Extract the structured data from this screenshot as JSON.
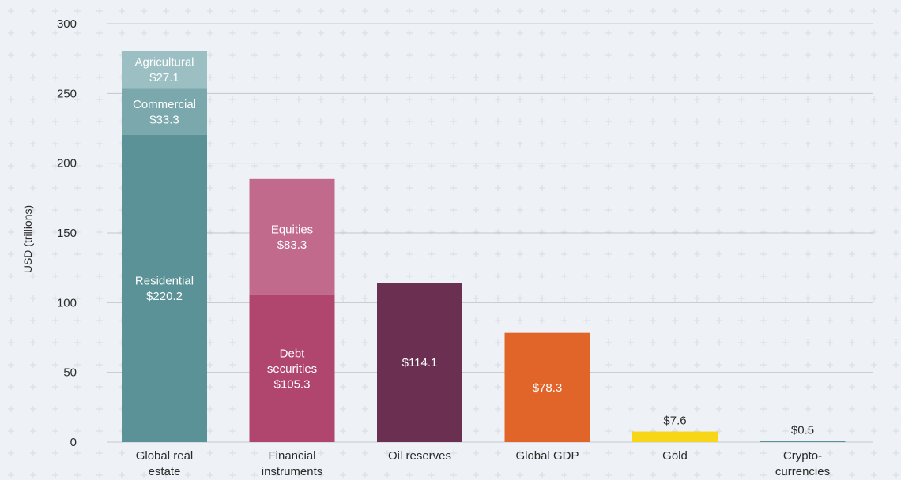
{
  "chart_data": {
    "type": "bar",
    "stacked": true,
    "ylabel": "USD (trillions)",
    "ylim": [
      0,
      300
    ],
    "yticks": [
      0,
      50,
      100,
      150,
      200,
      250,
      300
    ],
    "grid": true,
    "categories": [
      {
        "label_lines": [
          "Global real",
          "estate"
        ],
        "segments": [
          {
            "name": "Residential",
            "value": 220.2,
            "label_lines": [
              "Residential",
              "$220.2"
            ],
            "color": "#5a9297",
            "text_color": "#ffffff"
          },
          {
            "name": "Commercial",
            "value": 33.3,
            "label_lines": [
              "Commercial",
              "$33.3"
            ],
            "color": "#7ba8ad",
            "text_color": "#ffffff"
          },
          {
            "name": "Agricultural",
            "value": 27.1,
            "label_lines": [
              "Agricultural",
              "$27.1"
            ],
            "color": "#9cbfc3",
            "text_color": "#ffffff"
          }
        ]
      },
      {
        "label_lines": [
          "Financial",
          "instruments"
        ],
        "segments": [
          {
            "name": "Debt securities",
            "value": 105.3,
            "label_lines": [
              "Debt",
              "securities",
              "$105.3"
            ],
            "color": "#b0466d",
            "text_color": "#ffffff"
          },
          {
            "name": "Equities",
            "value": 83.3,
            "label_lines": [
              "Equities",
              "$83.3"
            ],
            "color": "#c26a8c",
            "text_color": "#ffffff"
          }
        ]
      },
      {
        "label_lines": [
          "Oil reserves"
        ],
        "segments": [
          {
            "name": "",
            "value": 114.1,
            "label_lines": [
              "$114.1"
            ],
            "color": "#6b2f52",
            "text_color": "#ffffff"
          }
        ]
      },
      {
        "label_lines": [
          "Global GDP"
        ],
        "segments": [
          {
            "name": "",
            "value": 78.3,
            "label_lines": [
              "$78.3"
            ],
            "color": "#e16528",
            "text_color": "#ffffff"
          }
        ]
      },
      {
        "label_lines": [
          "Gold"
        ],
        "segments": [
          {
            "name": "",
            "value": 7.6,
            "label_lines": [
              "$7.6"
            ],
            "color": "#f7d617",
            "text_color": "#2b2b2b",
            "label_outside": true
          }
        ]
      },
      {
        "label_lines": [
          "Crypto-",
          "currencies"
        ],
        "segments": [
          {
            "name": "",
            "value": 0.5,
            "label_lines": [
              "$0.5"
            ],
            "color": "#5a9297",
            "text_color": "#2b2b2b",
            "label_outside": true
          }
        ]
      }
    ]
  },
  "colors": {
    "background": "#eef1f6",
    "gridline": "#c4c8cf",
    "text": "#2b2b2b"
  }
}
